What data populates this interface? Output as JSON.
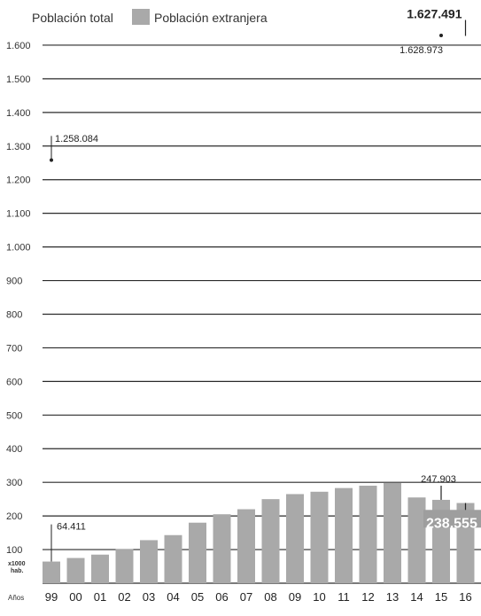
{
  "chart_data": {
    "type": "bar",
    "legend": {
      "position": "top-left",
      "total_label": "Población total",
      "foreign_label": "Población extranjera"
    },
    "categories": [
      "99",
      "00",
      "01",
      "02",
      "03",
      "04",
      "05",
      "06",
      "07",
      "08",
      "09",
      "10",
      "11",
      "12",
      "13",
      "14",
      "15",
      "16"
    ],
    "x_axis_prefix": "Años",
    "y_unit": "x1000 hab.",
    "y_ticks": [
      "1.600",
      "1.500",
      "1.400",
      "1.300",
      "1.200",
      "1.100",
      "1.000",
      "900",
      "800",
      "700",
      "600",
      "500",
      "400",
      "300",
      "200",
      "100"
    ],
    "ylim": [
      0,
      1650
    ],
    "grid": true,
    "series": [
      {
        "name": "Población extranjera",
        "color": "#a9a9a9",
        "values": [
          64.411,
          75,
          85,
          102,
          128,
          143,
          180,
          205,
          220,
          250,
          265,
          272,
          283,
          290,
          298,
          255,
          247.903,
          238.555
        ]
      },
      {
        "name": "Población total",
        "values": [
          1258.084,
          null,
          null,
          null,
          null,
          null,
          null,
          null,
          null,
          null,
          null,
          null,
          null,
          null,
          null,
          null,
          1628.973,
          1627.491
        ]
      }
    ],
    "annotations": [
      {
        "text": "1.258.084",
        "category": "99",
        "series": "total"
      },
      {
        "text": "1.628.973",
        "category": "15",
        "series": "total"
      },
      {
        "text": "1.627.491",
        "category": "16",
        "series": "total"
      },
      {
        "text": "64.411",
        "category": "99",
        "series": "foreign"
      },
      {
        "text": "247.903",
        "category": "15",
        "series": "foreign"
      },
      {
        "text": "238.555",
        "category": "16",
        "series": "foreign"
      }
    ]
  }
}
